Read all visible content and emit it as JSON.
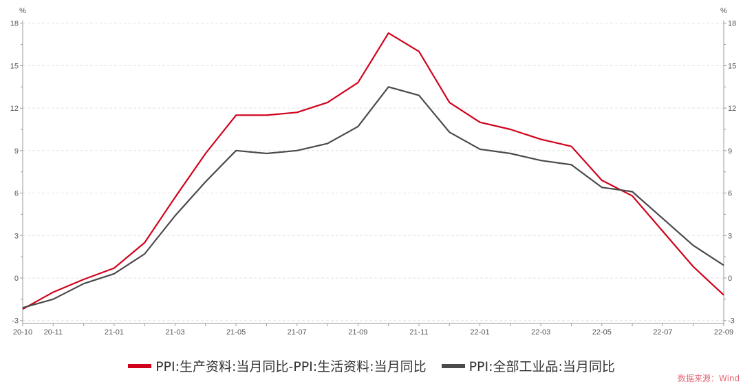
{
  "chart_data": {
    "type": "line",
    "title": "",
    "x": [
      "20-10",
      "20-11",
      "20-12",
      "21-01",
      "21-02",
      "21-03",
      "21-04",
      "21-05",
      "21-06",
      "21-07",
      "21-08",
      "21-09",
      "21-10",
      "21-11",
      "21-12",
      "22-01",
      "22-02",
      "22-03",
      "22-04",
      "22-05",
      "22-06",
      "22-07",
      "22-08",
      "22-09"
    ],
    "x_tick_labels": [
      "20-10",
      "20-11",
      "21-01",
      "21-03",
      "21-05",
      "21-07",
      "21-09",
      "21-11",
      "22-01",
      "22-03",
      "22-05",
      "22-07",
      "22-09"
    ],
    "ylim": [
      -3,
      18
    ],
    "y_ticks": [
      -3,
      0,
      3,
      6,
      9,
      12,
      15,
      18
    ],
    "y_unit_left": "%",
    "y_unit_right": "%",
    "grid": true,
    "legend_position": "bottom",
    "series": [
      {
        "name": "PPI:生产资料:当月同比-PPI:生活资料:当月同比",
        "color": "#d0021b",
        "values": [
          -2.2,
          -1.0,
          -0.1,
          0.7,
          2.5,
          5.7,
          8.8,
          11.5,
          11.5,
          11.7,
          12.4,
          13.8,
          17.3,
          16.0,
          12.4,
          11.0,
          10.5,
          9.8,
          9.3,
          6.9,
          5.8,
          3.3,
          0.8,
          -1.2
        ]
      },
      {
        "name": "PPI:全部工业品:当月同比",
        "color": "#4a4a4a",
        "values": [
          -2.1,
          -1.5,
          -0.4,
          0.3,
          1.7,
          4.4,
          6.8,
          9.0,
          8.8,
          9.0,
          9.5,
          10.7,
          13.5,
          12.9,
          10.3,
          9.1,
          8.8,
          8.3,
          8.0,
          6.4,
          6.1,
          4.2,
          2.3,
          0.9
        ]
      }
    ]
  },
  "source": "数据来源：Wind"
}
